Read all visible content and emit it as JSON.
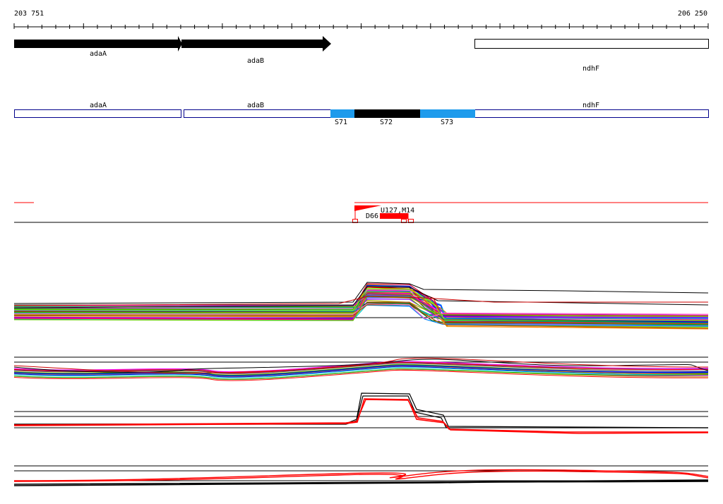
{
  "ruler": {
    "start_label": "203 751",
    "end_label": "206 250"
  },
  "genes": [
    {
      "name": "adaA",
      "style": "arrow-filled"
    },
    {
      "name": "adaB",
      "style": "arrow-filled"
    },
    {
      "name": "ndhF",
      "style": "box-open"
    }
  ],
  "segment_track": {
    "labels": [
      "adaA",
      "adaB",
      "ndhF"
    ],
    "segments": [
      {
        "name": "S71",
        "color": "#1e9bec"
      },
      {
        "name": "S72",
        "color": "#000000"
      },
      {
        "name": "S73",
        "color": "#1e9bec"
      }
    ]
  },
  "mutation_track": {
    "labels": [
      "D66",
      "U127,M14"
    ],
    "color": "#ff0000"
  },
  "colors": {
    "gene_outline": "#00008b",
    "highlight": "#ff0000"
  }
}
